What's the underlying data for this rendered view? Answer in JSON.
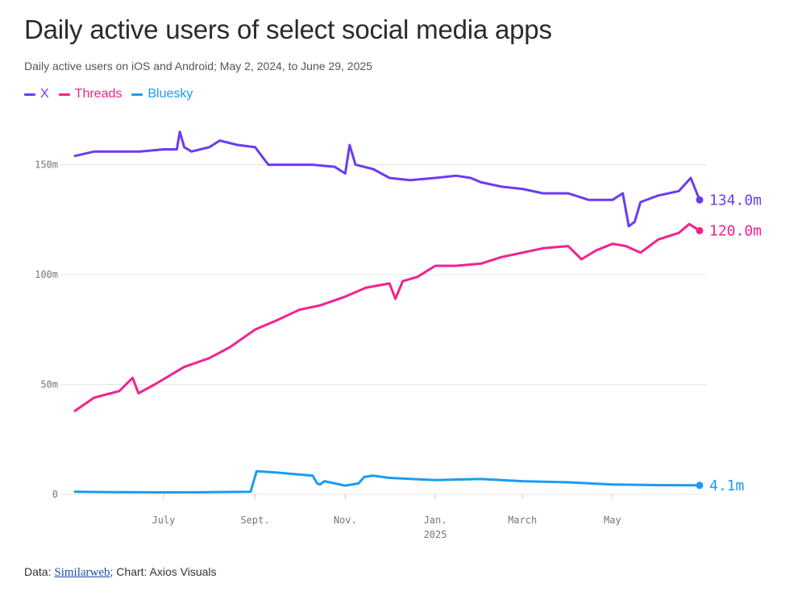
{
  "header": {
    "title": "Daily active users of select social media apps",
    "subtitle": "Daily active users on iOS and Android; May 2, 2024, to June 29, 2025"
  },
  "footer": {
    "prefix": "Data: ",
    "source_link": "Similarweb",
    "suffix": "; Chart: Axios Visuals"
  },
  "chart_data": {
    "type": "line",
    "x_range": [
      "2024-05-02",
      "2025-06-29"
    ],
    "ylim": [
      0,
      170
    ],
    "y_ticks": [
      {
        "value": 0,
        "label": "0"
      },
      {
        "value": 50,
        "label": "50m"
      },
      {
        "value": 100,
        "label": "100m"
      },
      {
        "value": 150,
        "label": "150m"
      }
    ],
    "x_ticks": [
      {
        "date": "2024-07-01",
        "label": "July",
        "sublabel": ""
      },
      {
        "date": "2024-09-01",
        "label": "Sept.",
        "sublabel": ""
      },
      {
        "date": "2024-11-01",
        "label": "Nov.",
        "sublabel": ""
      },
      {
        "date": "2025-01-01",
        "label": "Jan.",
        "sublabel": "2025"
      },
      {
        "date": "2025-03-01",
        "label": "March",
        "sublabel": ""
      },
      {
        "date": "2025-05-01",
        "label": "May",
        "sublabel": ""
      }
    ],
    "grid": "horizontal",
    "legend": "top-left",
    "series": [
      {
        "name": "X",
        "color": "#6b3cf0",
        "end_label": "134.0m",
        "points": [
          [
            "2024-05-02",
            154
          ],
          [
            "2024-05-15",
            156
          ],
          [
            "2024-06-01",
            156
          ],
          [
            "2024-06-15",
            156
          ],
          [
            "2024-07-01",
            157
          ],
          [
            "2024-07-10",
            157
          ],
          [
            "2024-07-12",
            165
          ],
          [
            "2024-07-15",
            158
          ],
          [
            "2024-07-20",
            156
          ],
          [
            "2024-08-01",
            158
          ],
          [
            "2024-08-08",
            161
          ],
          [
            "2024-08-20",
            159
          ],
          [
            "2024-09-01",
            158
          ],
          [
            "2024-09-10",
            150
          ],
          [
            "2024-09-25",
            150
          ],
          [
            "2024-10-10",
            150
          ],
          [
            "2024-10-25",
            149
          ],
          [
            "2024-11-01",
            146
          ],
          [
            "2024-11-04",
            159
          ],
          [
            "2024-11-08",
            150
          ],
          [
            "2024-11-20",
            148
          ],
          [
            "2024-12-01",
            144
          ],
          [
            "2024-12-15",
            143
          ],
          [
            "2025-01-01",
            144
          ],
          [
            "2025-01-15",
            145
          ],
          [
            "2025-01-25",
            144
          ],
          [
            "2025-02-01",
            142
          ],
          [
            "2025-02-15",
            140
          ],
          [
            "2025-03-01",
            139
          ],
          [
            "2025-03-15",
            137
          ],
          [
            "2025-04-01",
            137
          ],
          [
            "2025-04-15",
            134
          ],
          [
            "2025-05-01",
            134
          ],
          [
            "2025-05-08",
            137
          ],
          [
            "2025-05-12",
            122
          ],
          [
            "2025-05-16",
            124
          ],
          [
            "2025-05-20",
            133
          ],
          [
            "2025-06-01",
            136
          ],
          [
            "2025-06-15",
            138
          ],
          [
            "2025-06-23",
            144
          ],
          [
            "2025-06-29",
            134
          ]
        ]
      },
      {
        "name": "Threads",
        "color": "#f0238e",
        "end_label": "120.0m",
        "points": [
          [
            "2024-05-02",
            38
          ],
          [
            "2024-05-15",
            44
          ],
          [
            "2024-06-01",
            47
          ],
          [
            "2024-06-10",
            53
          ],
          [
            "2024-06-14",
            46
          ],
          [
            "2024-06-25",
            50
          ],
          [
            "2024-07-15",
            58
          ],
          [
            "2024-08-01",
            62
          ],
          [
            "2024-08-15",
            67
          ],
          [
            "2024-09-01",
            75
          ],
          [
            "2024-09-15",
            79
          ],
          [
            "2024-10-01",
            84
          ],
          [
            "2024-10-15",
            86
          ],
          [
            "2024-11-01",
            90
          ],
          [
            "2024-11-15",
            94
          ],
          [
            "2024-12-01",
            96
          ],
          [
            "2024-12-05",
            89
          ],
          [
            "2024-12-10",
            97
          ],
          [
            "2024-12-20",
            99
          ],
          [
            "2025-01-01",
            104
          ],
          [
            "2025-01-15",
            104
          ],
          [
            "2025-02-01",
            105
          ],
          [
            "2025-02-15",
            108
          ],
          [
            "2025-03-01",
            110
          ],
          [
            "2025-03-15",
            112
          ],
          [
            "2025-04-01",
            113
          ],
          [
            "2025-04-10",
            107
          ],
          [
            "2025-04-20",
            111
          ],
          [
            "2025-05-01",
            114
          ],
          [
            "2025-05-10",
            113
          ],
          [
            "2025-05-20",
            110
          ],
          [
            "2025-06-01",
            116
          ],
          [
            "2025-06-15",
            119
          ],
          [
            "2025-06-22",
            123
          ],
          [
            "2025-06-29",
            120
          ]
        ]
      },
      {
        "name": "Bluesky",
        "color": "#1a9df0",
        "end_label": "4.1m",
        "points": [
          [
            "2024-05-02",
            1.2
          ],
          [
            "2024-06-01",
            1
          ],
          [
            "2024-07-01",
            0.9
          ],
          [
            "2024-08-01",
            1
          ],
          [
            "2024-08-29",
            1.2
          ],
          [
            "2024-08-31",
            6
          ],
          [
            "2024-09-02",
            10.5
          ],
          [
            "2024-09-15",
            10
          ],
          [
            "2024-10-01",
            9
          ],
          [
            "2024-10-10",
            8.5
          ],
          [
            "2024-10-13",
            5
          ],
          [
            "2024-10-15",
            4.5
          ],
          [
            "2024-10-18",
            6
          ],
          [
            "2024-11-01",
            4
          ],
          [
            "2024-11-10",
            5
          ],
          [
            "2024-11-14",
            8
          ],
          [
            "2024-11-20",
            8.5
          ],
          [
            "2024-12-01",
            7.5
          ],
          [
            "2025-01-01",
            6.5
          ],
          [
            "2025-02-01",
            7
          ],
          [
            "2025-03-01",
            6
          ],
          [
            "2025-04-01",
            5.5
          ],
          [
            "2025-05-01",
            4.5
          ],
          [
            "2025-06-01",
            4.2
          ],
          [
            "2025-06-29",
            4.1
          ]
        ]
      }
    ]
  }
}
